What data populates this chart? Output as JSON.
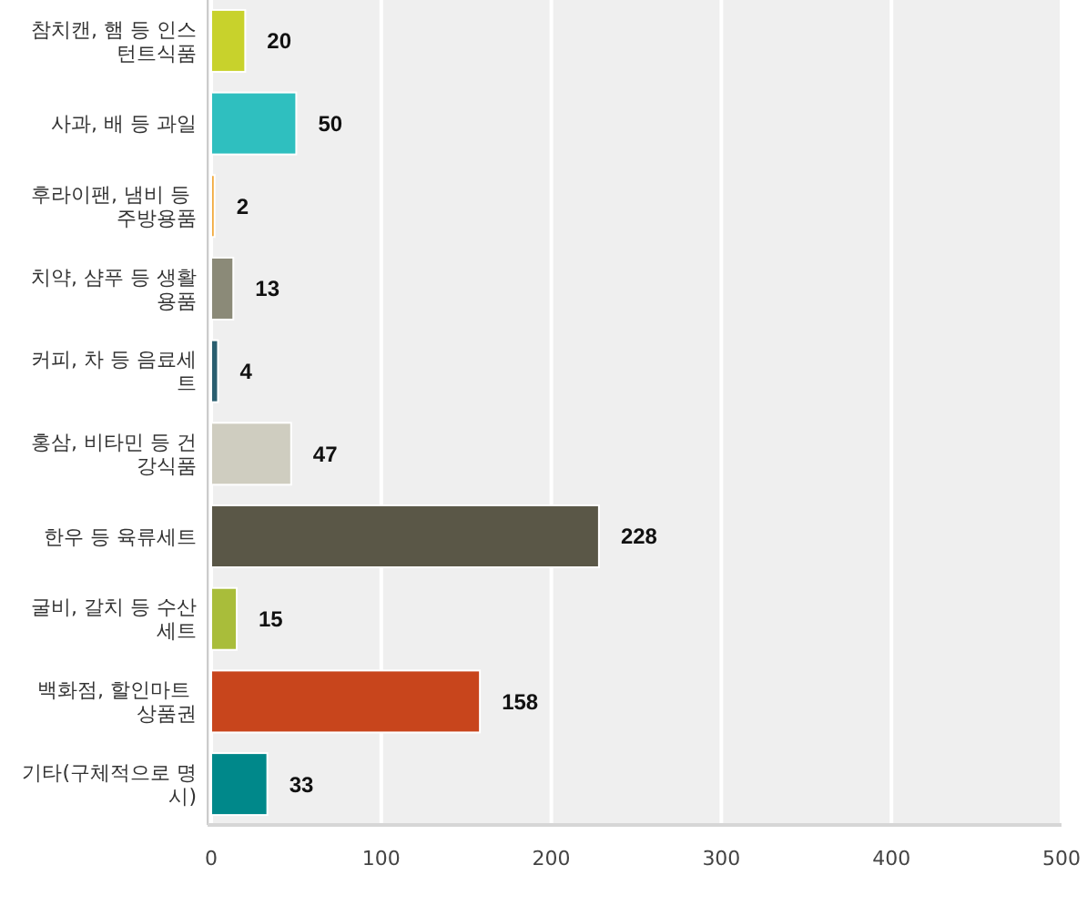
{
  "chart_data": {
    "type": "bar",
    "orientation": "horizontal",
    "categories": [
      "참치캔, 햄 등 인스턴트식품",
      "사과, 배 등 과일",
      "후라이팬, 냄비 등 주방용품",
      "치약, 샴푸 등 생활용품",
      "커피, 차 등 음료세트",
      "홍삼, 비타민 등 건강식품",
      "한우 등 육류세트",
      "굴비, 갈치 등 수산세트",
      "백화점, 할인마트 상품권",
      "기타(구체적으로 명시)"
    ],
    "values": [
      20,
      50,
      2,
      13,
      4,
      47,
      228,
      15,
      158,
      33
    ],
    "colors": [
      "#c8d22c",
      "#2fbfbf",
      "#f2a93b",
      "#8b8a78",
      "#2a5f70",
      "#cfcdc0",
      "#5a5747",
      "#a9bd3a",
      "#c8451c",
      "#00888a"
    ],
    "xlim": [
      0,
      500
    ],
    "xticks": [
      0,
      100,
      200,
      300,
      400,
      500
    ],
    "grid": "x",
    "data_labels": true
  }
}
